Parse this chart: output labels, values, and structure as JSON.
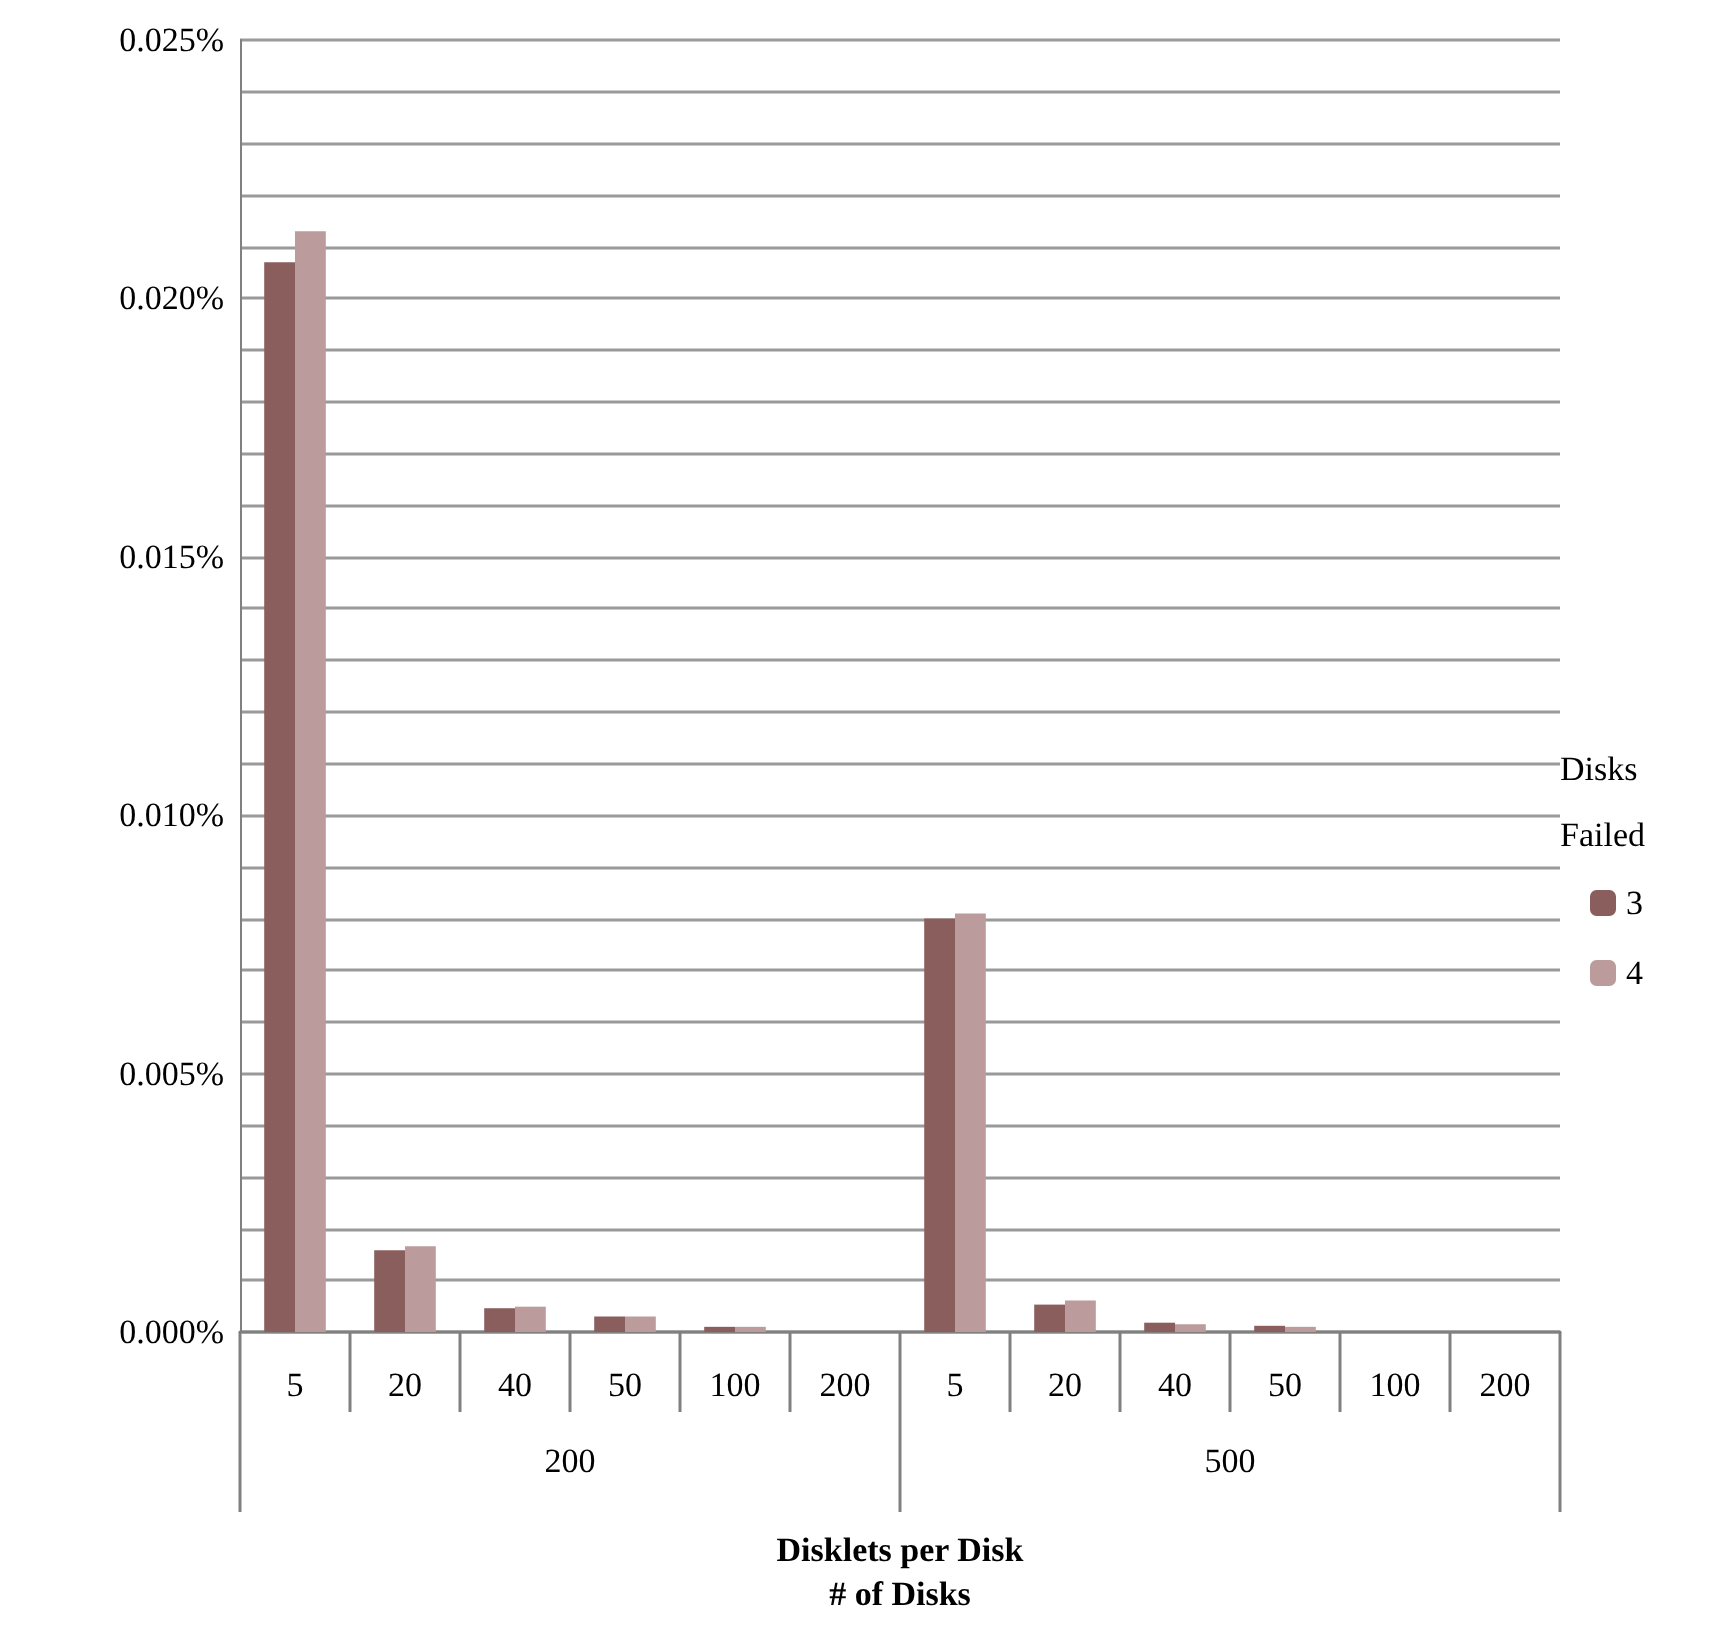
{
  "chart_data": {
    "type": "bar",
    "categories": [
      "5",
      "20",
      "40",
      "50",
      "100",
      "200",
      "5",
      "20",
      "40",
      "50",
      "100",
      "200"
    ],
    "annotations": [
      "200",
      "500"
    ],
    "xlabel": "Disklets per Disk\n# of Disks",
    "legend_title": "Disks\nFailed",
    "series": [
      {
        "name": "3",
        "color": "#8b5e5e",
        "values": [
          0.0207,
          0.00158,
          0.00046,
          0.0003,
          0.0001,
          0,
          0.008,
          0.00053,
          0.00018,
          0.00012,
          0,
          0
        ]
      },
      {
        "name": "4",
        "color": "#bb9b9b",
        "values": [
          0.0213,
          0.00166,
          0.00049,
          0.0003,
          0.0001,
          0,
          0.0081,
          0.00061,
          0.00015,
          0.0001,
          0,
          0
        ]
      }
    ],
    "ylim": [
      0,
      0.025
    ],
    "yticks": [
      {
        "value": 0,
        "label": "0.000%"
      },
      {
        "value": 0.001,
        "label": null
      },
      {
        "value": 0.002,
        "label": null
      },
      {
        "value": 0.003,
        "label": null
      },
      {
        "value": 0.004,
        "label": null
      },
      {
        "value": 0.005,
        "label": "0.005%"
      },
      {
        "value": 0.006,
        "label": null
      },
      {
        "value": 0.007,
        "label": null
      },
      {
        "value": 0.008,
        "label": null
      },
      {
        "value": 0.009,
        "label": null
      },
      {
        "value": 0.01,
        "label": "0.010%"
      },
      {
        "value": 0.011,
        "label": null
      },
      {
        "value": 0.012,
        "label": null
      },
      {
        "value": 0.013,
        "label": null
      },
      {
        "value": 0.014,
        "label": null
      },
      {
        "value": 0.015,
        "label": "0.015%"
      },
      {
        "value": 0.016,
        "label": null
      },
      {
        "value": 0.017,
        "label": null
      },
      {
        "value": 0.018,
        "label": null
      },
      {
        "value": 0.019,
        "label": null
      },
      {
        "value": 0.02,
        "label": "0.020%"
      },
      {
        "value": 0.021,
        "label": null
      },
      {
        "value": 0.022,
        "label": null
      },
      {
        "value": 0.023,
        "label": null
      },
      {
        "value": 0.024,
        "label": null
      },
      {
        "value": 0.025,
        "label": "0.025%"
      }
    ],
    "grid": true,
    "legend": "right"
  }
}
